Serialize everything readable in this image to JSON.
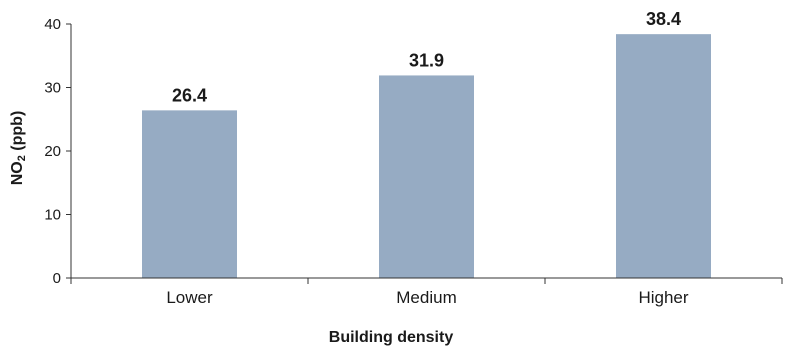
{
  "chart_data": {
    "type": "bar",
    "categories": [
      "Lower",
      "Medium",
      "Higher"
    ],
    "values": [
      26.4,
      31.9,
      38.4
    ],
    "value_labels": [
      "26.4",
      "31.9",
      "38.4"
    ],
    "xlabel": "Building density",
    "ylabel": {
      "prefix": "NO",
      "subscript": "2",
      "suffix": " (ppb)"
    },
    "ylim": [
      0,
      40
    ],
    "yticks": [
      0,
      10,
      20,
      30,
      40
    ],
    "grid": false,
    "bar_color": "#96abc3",
    "axis_color": "#333333"
  }
}
